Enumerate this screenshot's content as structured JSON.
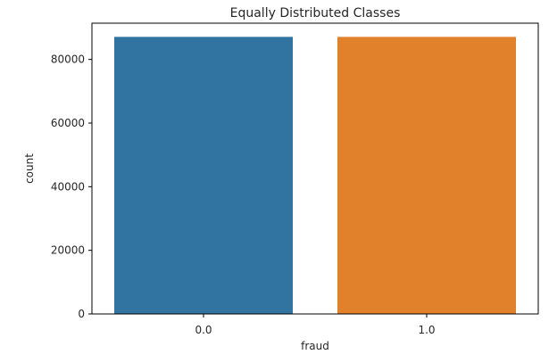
{
  "chart_data": {
    "type": "bar",
    "title": "Equally Distributed Classes",
    "xlabel": "fraud",
    "ylabel": "count",
    "categories": [
      "0.0",
      "1.0"
    ],
    "values": [
      87100,
      87100
    ],
    "ylim": [
      0,
      91400
    ],
    "yticks": [
      0,
      20000,
      40000,
      60000,
      80000
    ],
    "colors": [
      "#3274a1",
      "#e1812c"
    ],
    "grid": false,
    "legend": "none"
  }
}
